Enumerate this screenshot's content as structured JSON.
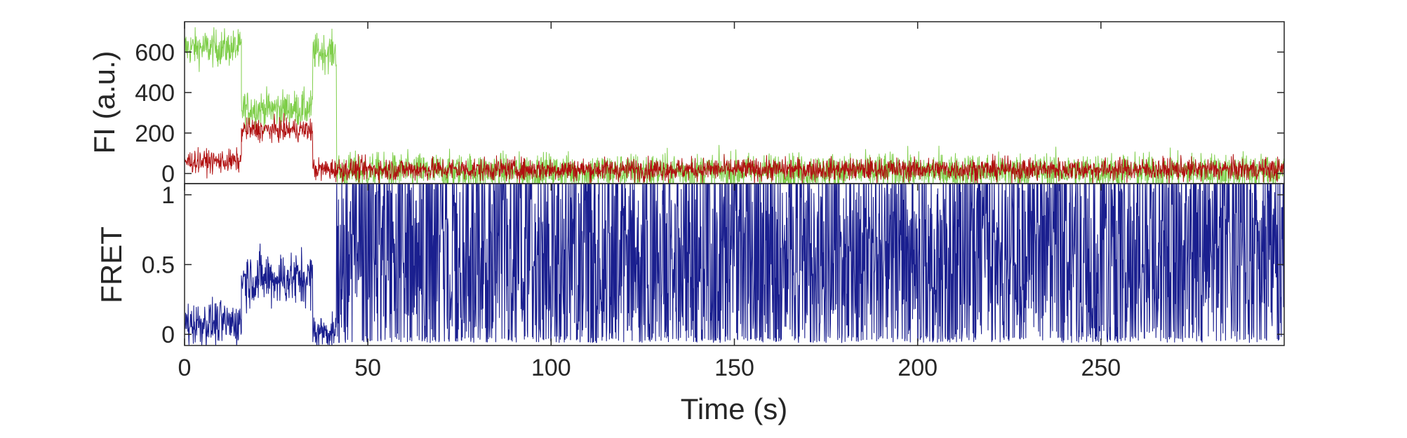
{
  "chart_data": [
    {
      "type": "line",
      "panel": "top",
      "ylabel": "FI (a.u.)",
      "xlim": [
        0,
        300
      ],
      "ylim": [
        -50,
        750
      ],
      "yticks": [
        0,
        200,
        400,
        600
      ],
      "ytick_labels": [
        "0",
        "200",
        "400",
        "600"
      ],
      "grid": false,
      "series": [
        {
          "color": "#7fce4a",
          "noise": 45,
          "segments": [
            {
              "x0": 0,
              "x1": 15.5,
              "y": 620
            },
            {
              "x0": 15.5,
              "x1": 35,
              "y": 320
            },
            {
              "x0": 35,
              "x1": 41.5,
              "y": 600
            },
            {
              "x0": 41.5,
              "x1": 300,
              "y": 10
            }
          ]
        },
        {
          "color": "#b01010",
          "noise": 28,
          "segments": [
            {
              "x0": 0,
              "x1": 15.5,
              "y": 60
            },
            {
              "x0": 15.5,
              "x1": 35,
              "y": 215
            },
            {
              "x0": 35,
              "x1": 300,
              "y": 20
            }
          ]
        }
      ]
    },
    {
      "type": "line",
      "panel": "bottom",
      "xlabel": "Time (s)",
      "ylabel": "FRET",
      "xlim": [
        0,
        300
      ],
      "ylim": [
        -0.08,
        1.08
      ],
      "xticks": [
        0,
        50,
        100,
        150,
        200,
        250
      ],
      "xtick_labels": [
        "0",
        "50",
        "100",
        "150",
        "200",
        "250"
      ],
      "yticks": [
        0,
        0.5,
        1
      ],
      "ytick_labels": [
        "0",
        "0.5",
        "1"
      ],
      "grid": false,
      "series": [
        {
          "color": "#1a1f8f",
          "segments": [
            {
              "x0": 0,
              "x1": 15.5,
              "y": 0.08,
              "noise": 0.08
            },
            {
              "x0": 15.5,
              "x1": 35,
              "y": 0.4,
              "noise": 0.1
            },
            {
              "x0": 35,
              "x1": 41.5,
              "y": 0.02,
              "noise": 0.06
            },
            {
              "x0": 41.5,
              "x1": 300,
              "y": 0.5,
              "noise": "random-full-range"
            }
          ]
        }
      ]
    }
  ]
}
